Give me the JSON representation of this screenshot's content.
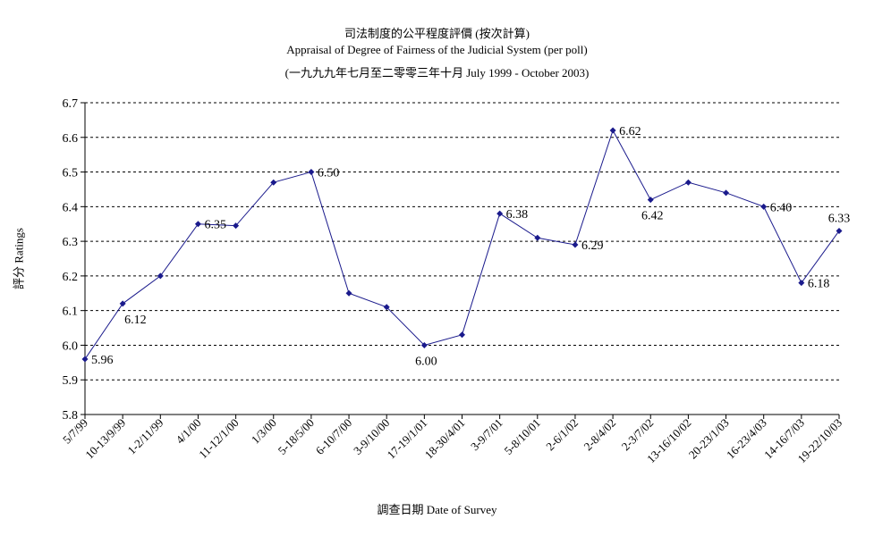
{
  "chart_data": {
    "type": "line",
    "title": "司法制度的公平程度評價 (按次計算)",
    "subtitle": "Appraisal of Degree of Fairness of the Judicial System (per poll)",
    "subtitle2": "(一九九九年七月至二零零三年十月 July 1999 - October 2003)",
    "xlabel": "調查日期 Date of Survey",
    "ylabel": "評分 Ratings",
    "ylim": [
      5.8,
      6.7
    ],
    "yticks": [
      "5.8",
      "5.9",
      "6.0",
      "6.1",
      "6.2",
      "6.3",
      "6.4",
      "6.5",
      "6.6",
      "6.7"
    ],
    "grid": true,
    "categories": [
      "5/7/99",
      "10-13/9/99",
      "1-2/11/99",
      "4/1/00",
      "11-12/1/00",
      "1/3/00",
      "5-18/5/00",
      "6-10/7/00",
      "3-9/10/00",
      "17-19/1/01",
      "18-30/4/01",
      "3-9/7/01",
      "5-8/10/01",
      "2-6/1/02",
      "2-8/4/02",
      "2-3/7/02",
      "13-16/10/02",
      "20-23/1/03",
      "16-23/4/03",
      "14-16/7/03",
      "19-22/10/03"
    ],
    "series": [
      {
        "values": [
          5.96,
          6.12,
          6.2,
          6.35,
          6.345,
          6.47,
          6.5,
          6.15,
          6.11,
          6.0,
          6.03,
          6.38,
          6.31,
          6.29,
          6.62,
          6.42,
          6.47,
          6.44,
          6.4,
          6.18,
          6.33
        ],
        "color": "#1a1a8c"
      }
    ],
    "data_labels": [
      {
        "index": 0,
        "text": "5.96",
        "pos": "right"
      },
      {
        "index": 1,
        "text": "6.12",
        "pos": "below"
      },
      {
        "index": 3,
        "text": "6.35",
        "pos": "right"
      },
      {
        "index": 6,
        "text": "6.50",
        "pos": "right"
      },
      {
        "index": 9,
        "text": "6.00",
        "pos": "below"
      },
      {
        "index": 11,
        "text": "6.38",
        "pos": "right"
      },
      {
        "index": 13,
        "text": "6.29",
        "pos": "right"
      },
      {
        "index": 14,
        "text": "6.62",
        "pos": "right"
      },
      {
        "index": 15,
        "text": "6.42",
        "pos": "below"
      },
      {
        "index": 18,
        "text": "6.40",
        "pos": "right"
      },
      {
        "index": 19,
        "text": "6.18",
        "pos": "right"
      },
      {
        "index": 20,
        "text": "6.33",
        "pos": "above"
      }
    ]
  }
}
